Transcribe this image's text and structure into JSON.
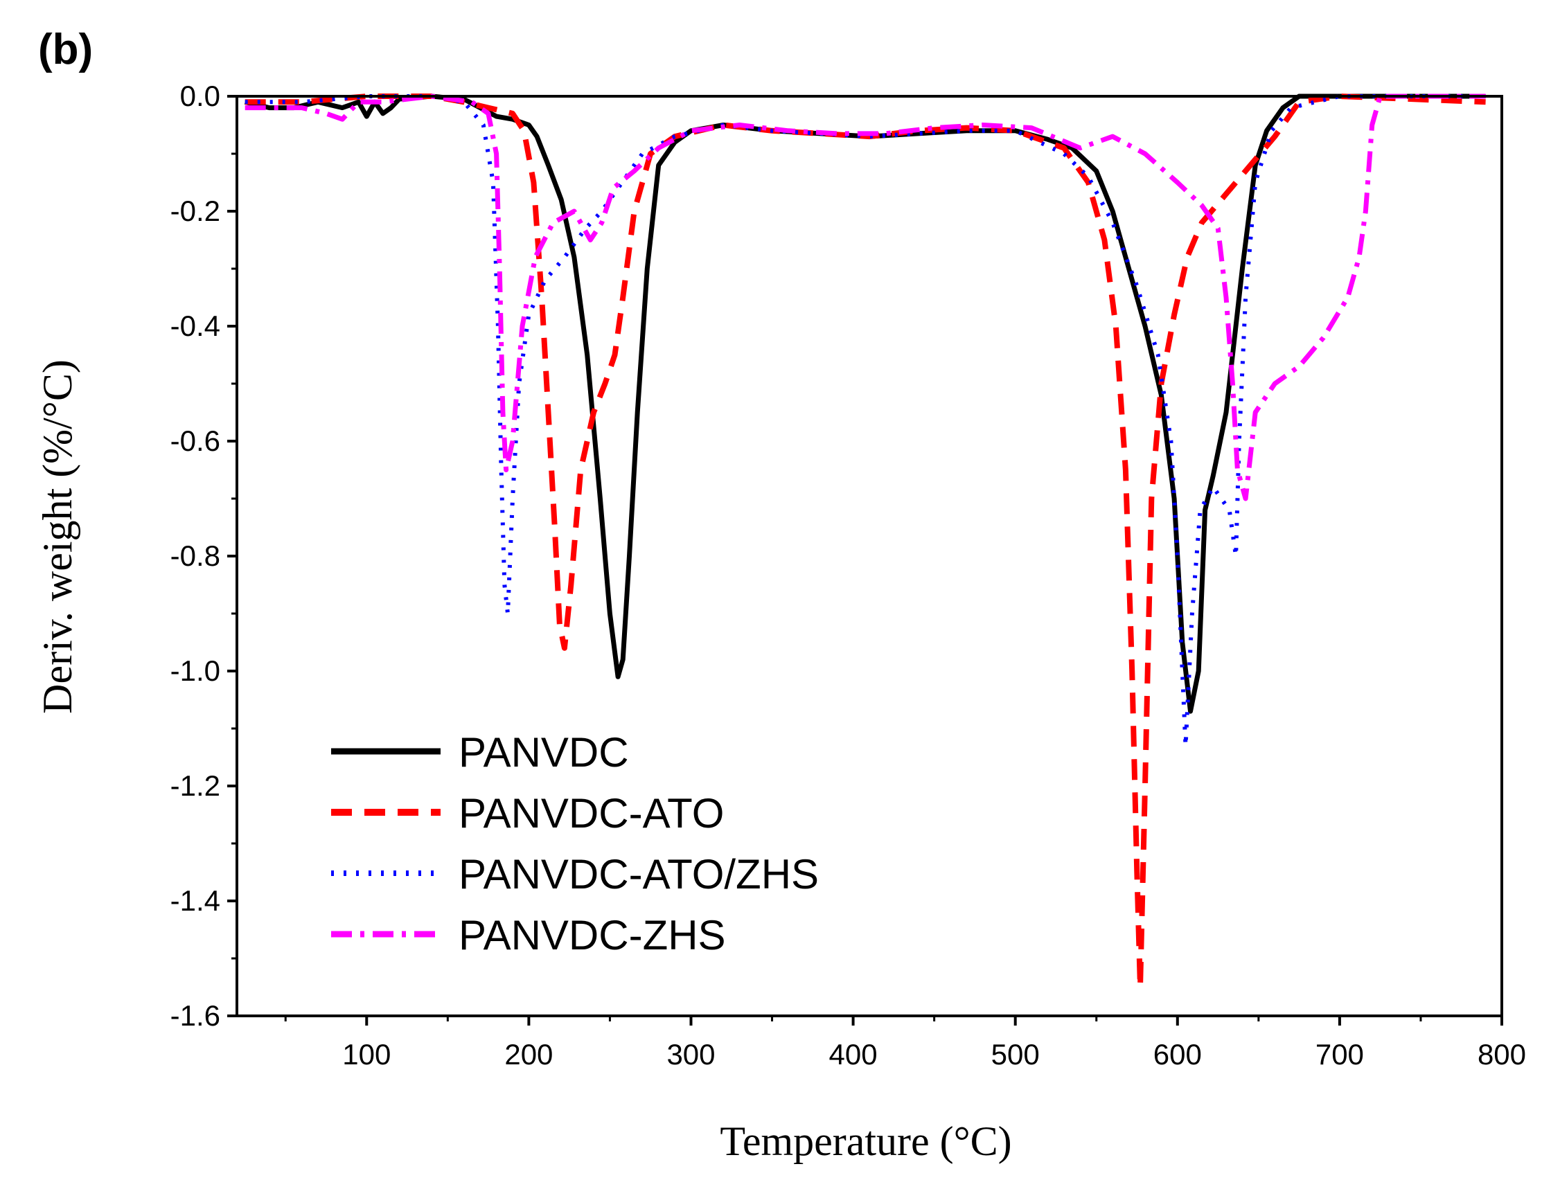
{
  "panel_label": "(b)",
  "colors": {
    "PANVDC": "#000000",
    "PANVDC-ATO": "#ff0000",
    "PANVDC-ATO/ZHS": "#0000ff",
    "PANVDC-ZHS": "#ff00ff"
  },
  "chart_data": {
    "type": "line",
    "title": "",
    "xlabel": "Temperature (°C)",
    "ylabel": "Deriv. weight (%/°C)",
    "xlim": [
      20,
      800
    ],
    "ylim": [
      -1.6,
      0.0
    ],
    "xticks": [
      100,
      200,
      300,
      400,
      500,
      600,
      700,
      800
    ],
    "yticks": [
      0.0,
      -0.2,
      -0.4,
      -0.6,
      -0.8,
      -1.0,
      -1.2,
      -1.4,
      -1.6
    ],
    "xtick_labels": [
      "100",
      "200",
      "300",
      "400",
      "500",
      "600",
      "700",
      "800"
    ],
    "ytick_labels": [
      "0.0",
      "-0.2",
      "-0.4",
      "-0.6",
      "-0.8",
      "-1.0",
      "-1.2",
      "-1.4",
      "-1.6"
    ],
    "grid": false,
    "legend_position": "bottom-left",
    "series": [
      {
        "name": "PANVDC",
        "style": "solid",
        "points": [
          [
            25,
            -0.01
          ],
          [
            40,
            -0.02
          ],
          [
            55,
            -0.02
          ],
          [
            70,
            -0.01
          ],
          [
            85,
            -0.02
          ],
          [
            95,
            -0.01
          ],
          [
            100,
            -0.035
          ],
          [
            105,
            -0.01
          ],
          [
            110,
            -0.03
          ],
          [
            115,
            -0.02
          ],
          [
            120,
            -0.005
          ],
          [
            140,
            0.0
          ],
          [
            160,
            -0.005
          ],
          [
            170,
            -0.02
          ],
          [
            180,
            -0.035
          ],
          [
            190,
            -0.04
          ],
          [
            200,
            -0.05
          ],
          [
            205,
            -0.07
          ],
          [
            212,
            -0.12
          ],
          [
            220,
            -0.18
          ],
          [
            228,
            -0.28
          ],
          [
            236,
            -0.45
          ],
          [
            244,
            -0.7
          ],
          [
            250,
            -0.9
          ],
          [
            255,
            -1.01
          ],
          [
            258,
            -0.98
          ],
          [
            262,
            -0.8
          ],
          [
            267,
            -0.55
          ],
          [
            273,
            -0.3
          ],
          [
            280,
            -0.12
          ],
          [
            290,
            -0.08
          ],
          [
            300,
            -0.06
          ],
          [
            320,
            -0.05
          ],
          [
            350,
            -0.06
          ],
          [
            380,
            -0.065
          ],
          [
            410,
            -0.07
          ],
          [
            440,
            -0.065
          ],
          [
            470,
            -0.06
          ],
          [
            500,
            -0.06
          ],
          [
            520,
            -0.075
          ],
          [
            535,
            -0.09
          ],
          [
            550,
            -0.13
          ],
          [
            560,
            -0.2
          ],
          [
            570,
            -0.3
          ],
          [
            580,
            -0.4
          ],
          [
            590,
            -0.52
          ],
          [
            598,
            -0.7
          ],
          [
            603,
            -0.95
          ],
          [
            608,
            -1.07
          ],
          [
            613,
            -1.0
          ],
          [
            617,
            -0.72
          ],
          [
            622,
            -0.66
          ],
          [
            630,
            -0.55
          ],
          [
            640,
            -0.3
          ],
          [
            648,
            -0.12
          ],
          [
            655,
            -0.06
          ],
          [
            665,
            -0.02
          ],
          [
            675,
            0.0
          ],
          [
            700,
            0.0
          ],
          [
            790,
            0.0
          ]
        ]
      },
      {
        "name": "PANVDC-ATO",
        "style": "dash",
        "points": [
          [
            25,
            -0.01
          ],
          [
            60,
            -0.01
          ],
          [
            100,
            0.0
          ],
          [
            140,
            0.0
          ],
          [
            160,
            -0.01
          ],
          [
            175,
            -0.02
          ],
          [
            190,
            -0.03
          ],
          [
            197,
            -0.06
          ],
          [
            203,
            -0.15
          ],
          [
            208,
            -0.35
          ],
          [
            212,
            -0.55
          ],
          [
            216,
            -0.75
          ],
          [
            219,
            -0.92
          ],
          [
            222,
            -0.96
          ],
          [
            226,
            -0.85
          ],
          [
            232,
            -0.65
          ],
          [
            240,
            -0.55
          ],
          [
            247,
            -0.5
          ],
          [
            253,
            -0.45
          ],
          [
            258,
            -0.35
          ],
          [
            265,
            -0.2
          ],
          [
            275,
            -0.1
          ],
          [
            290,
            -0.07
          ],
          [
            320,
            -0.05
          ],
          [
            350,
            -0.06
          ],
          [
            380,
            -0.065
          ],
          [
            410,
            -0.07
          ],
          [
            440,
            -0.06
          ],
          [
            470,
            -0.055
          ],
          [
            500,
            -0.06
          ],
          [
            530,
            -0.09
          ],
          [
            545,
            -0.15
          ],
          [
            555,
            -0.25
          ],
          [
            562,
            -0.4
          ],
          [
            568,
            -0.65
          ],
          [
            572,
            -1.0
          ],
          [
            575,
            -1.35
          ],
          [
            577,
            -1.55
          ],
          [
            580,
            -1.2
          ],
          [
            584,
            -0.7
          ],
          [
            590,
            -0.5
          ],
          [
            598,
            -0.38
          ],
          [
            606,
            -0.28
          ],
          [
            615,
            -0.22
          ],
          [
            630,
            -0.17
          ],
          [
            645,
            -0.12
          ],
          [
            660,
            -0.07
          ],
          [
            675,
            -0.01
          ],
          [
            700,
            0.0
          ],
          [
            790,
            -0.01
          ]
        ]
      },
      {
        "name": "PANVDC-ATO/ZHS",
        "style": "dot",
        "points": [
          [
            25,
            -0.01
          ],
          [
            60,
            -0.01
          ],
          [
            100,
            0.0
          ],
          [
            140,
            0.0
          ],
          [
            160,
            -0.01
          ],
          [
            172,
            -0.05
          ],
          [
            178,
            -0.15
          ],
          [
            181,
            -0.4
          ],
          [
            183,
            -0.65
          ],
          [
            185,
            -0.85
          ],
          [
            187,
            -0.9
          ],
          [
            190,
            -0.7
          ],
          [
            194,
            -0.5
          ],
          [
            200,
            -0.38
          ],
          [
            210,
            -0.32
          ],
          [
            222,
            -0.28
          ],
          [
            235,
            -0.23
          ],
          [
            245,
            -0.2
          ],
          [
            255,
            -0.16
          ],
          [
            270,
            -0.1
          ],
          [
            290,
            -0.07
          ],
          [
            320,
            -0.05
          ],
          [
            350,
            -0.06
          ],
          [
            380,
            -0.065
          ],
          [
            410,
            -0.07
          ],
          [
            440,
            -0.065
          ],
          [
            470,
            -0.06
          ],
          [
            500,
            -0.06
          ],
          [
            530,
            -0.1
          ],
          [
            545,
            -0.14
          ],
          [
            560,
            -0.22
          ],
          [
            575,
            -0.33
          ],
          [
            588,
            -0.45
          ],
          [
            596,
            -0.6
          ],
          [
            600,
            -0.8
          ],
          [
            603,
            -1.0
          ],
          [
            605,
            -1.13
          ],
          [
            609,
            -0.9
          ],
          [
            614,
            -0.72
          ],
          [
            622,
            -0.68
          ],
          [
            632,
            -0.72
          ],
          [
            636,
            -0.8
          ],
          [
            638,
            -0.6
          ],
          [
            642,
            -0.35
          ],
          [
            648,
            -0.15
          ],
          [
            658,
            -0.06
          ],
          [
            670,
            -0.02
          ],
          [
            700,
            0.0
          ],
          [
            790,
            0.0
          ]
        ]
      },
      {
        "name": "PANVDC-ZHS",
        "style": "dashdot",
        "points": [
          [
            25,
            -0.02
          ],
          [
            60,
            -0.02
          ],
          [
            75,
            -0.03
          ],
          [
            85,
            -0.04
          ],
          [
            95,
            -0.01
          ],
          [
            110,
            -0.01
          ],
          [
            140,
            0.0
          ],
          [
            165,
            -0.01
          ],
          [
            175,
            -0.03
          ],
          [
            180,
            -0.1
          ],
          [
            182,
            -0.3
          ],
          [
            184,
            -0.55
          ],
          [
            186,
            -0.65
          ],
          [
            190,
            -0.6
          ],
          [
            196,
            -0.4
          ],
          [
            204,
            -0.28
          ],
          [
            215,
            -0.22
          ],
          [
            228,
            -0.2
          ],
          [
            238,
            -0.25
          ],
          [
            245,
            -0.22
          ],
          [
            252,
            -0.16
          ],
          [
            265,
            -0.13
          ],
          [
            280,
            -0.09
          ],
          [
            300,
            -0.06
          ],
          [
            330,
            -0.05
          ],
          [
            360,
            -0.06
          ],
          [
            390,
            -0.065
          ],
          [
            420,
            -0.065
          ],
          [
            450,
            -0.055
          ],
          [
            480,
            -0.05
          ],
          [
            510,
            -0.055
          ],
          [
            540,
            -0.09
          ],
          [
            560,
            -0.07
          ],
          [
            580,
            -0.1
          ],
          [
            600,
            -0.15
          ],
          [
            615,
            -0.19
          ],
          [
            625,
            -0.23
          ],
          [
            630,
            -0.35
          ],
          [
            634,
            -0.5
          ],
          [
            637,
            -0.65
          ],
          [
            642,
            -0.7
          ],
          [
            648,
            -0.55
          ],
          [
            660,
            -0.5
          ],
          [
            675,
            -0.47
          ],
          [
            690,
            -0.42
          ],
          [
            705,
            -0.35
          ],
          [
            712,
            -0.28
          ],
          [
            716,
            -0.2
          ],
          [
            720,
            -0.05
          ],
          [
            725,
            0.0
          ],
          [
            790,
            0.0
          ]
        ]
      }
    ]
  }
}
